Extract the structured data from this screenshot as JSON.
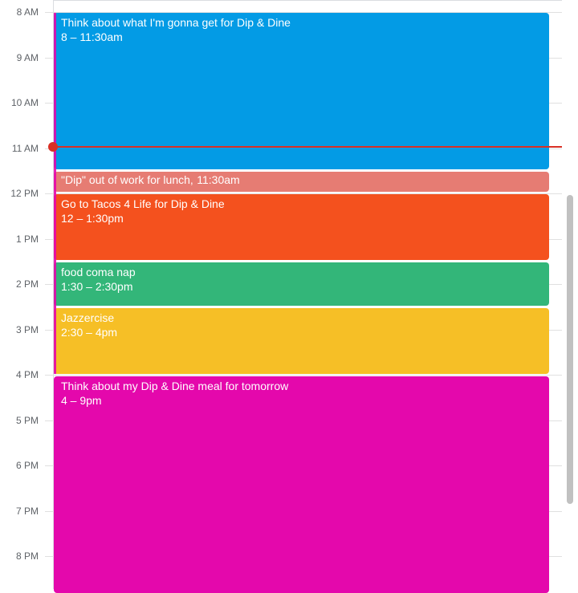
{
  "time_labels": [
    "8 AM",
    "9 AM",
    "10 AM",
    "11 AM",
    "12 PM",
    "1 PM",
    "2 PM",
    "3 PM",
    "4 PM",
    "5 PM",
    "6 PM",
    "7 PM",
    "8 PM"
  ],
  "events": [
    {
      "title": "Think about what I'm gonna get for Dip & Dine",
      "time": "8 – 11:30am",
      "color": "#039BE5"
    },
    {
      "title": "\"Dip\" out of work for lunch,",
      "time": "11:30am",
      "color": "#E67C73"
    },
    {
      "title": "Go to Tacos 4 Life for Dip & Dine",
      "time": "12 – 1:30pm",
      "color": "#F4511E"
    },
    {
      "title": "food coma nap",
      "time": "1:30 – 2:30pm",
      "color": "#33B679"
    },
    {
      "title": "Jazzercise",
      "time": "2:30 – 4pm",
      "color": "#F6BF26"
    },
    {
      "title": "Think about my Dip & Dine meal for tomorrow",
      "time": "4 – 9pm",
      "color": "#E408AC"
    }
  ],
  "now_indicator_color": "#D93025"
}
